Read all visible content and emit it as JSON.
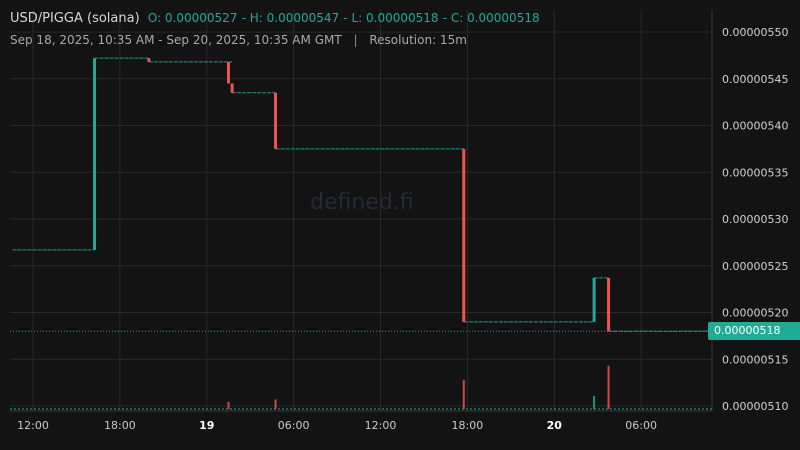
{
  "legend": {
    "pair": "USD/PIGGA (solana)",
    "open": "O: 0.00000527",
    "high": "H: 0.00000547",
    "low": "L: 0.00000518",
    "close": "C: 0.00000518",
    "range": "Sep 18, 2025, 10:35 AM - Sep 20, 2025, 10:35 AM GMT",
    "separator": "|",
    "resolution": "Resolution: 15m"
  },
  "watermark": "defined.fi",
  "last_price_label": "0.00000518",
  "colors": {
    "up": "#26a69a",
    "down": "#ef5350",
    "badge": "#22ab94",
    "background": "#131313",
    "grid": "#2a2a2a"
  },
  "chart_data": {
    "type": "candlestick",
    "title": "USD/PIGGA (solana)",
    "resolution": "15m",
    "xlabel": "",
    "ylabel": "",
    "ylim": [
      5.09e-06,
      5.53e-06
    ],
    "x_tick_labels": [
      {
        "label": "12:00",
        "t": "2025-09-18 12:00"
      },
      {
        "label": "18:00",
        "t": "2025-09-18 18:00"
      },
      {
        "label": "19",
        "t": "2025-09-19 00:00",
        "bold": true
      },
      {
        "label": "06:00",
        "t": "2025-09-19 06:00"
      },
      {
        "label": "12:00",
        "t": "2025-09-19 12:00"
      },
      {
        "label": "18:00",
        "t": "2025-09-19 18:00"
      },
      {
        "label": "20",
        "t": "2025-09-20 00:00",
        "bold": true
      },
      {
        "label": "06:00",
        "t": "2025-09-20 06:00"
      }
    ],
    "y_tick_labels": [
      "0.00000550",
      "0.00000545",
      "0.00000540",
      "0.00000535",
      "0.00000530",
      "0.00000525",
      "0.00000520",
      "0.00000515",
      "0.00000510"
    ],
    "y_ticks": [
      5.5e-06,
      5.45e-06,
      5.4e-06,
      5.35e-06,
      5.3e-06,
      5.25e-06,
      5.2e-06,
      5.15e-06,
      5.1e-06
    ],
    "grid": true,
    "last_price": 5.18e-06,
    "segments": [
      {
        "start": "2025-09-18 10:35",
        "end": "2025-09-18 16:15",
        "price": 5.267e-06
      },
      {
        "start": "2025-09-18 16:15",
        "end": "2025-09-18 20:00",
        "price": 5.472e-06
      },
      {
        "start": "2025-09-18 20:00",
        "end": "2025-09-19 01:45",
        "price": 5.468e-06
      },
      {
        "start": "2025-09-19 01:45",
        "end": "2025-09-19 04:45",
        "price": 5.435e-06
      },
      {
        "start": "2025-09-19 04:45",
        "end": "2025-09-19 17:45",
        "price": 5.375e-06
      },
      {
        "start": "2025-09-19 17:45",
        "end": "2025-09-20 02:45",
        "price": 5.19e-06
      },
      {
        "start": "2025-09-20 02:45",
        "end": "2025-09-20 03:45",
        "price": 5.237e-06
      },
      {
        "start": "2025-09-20 03:45",
        "end": "2025-09-20 10:35",
        "price": 5.18e-06
      }
    ],
    "candles": [
      {
        "t": "2025-09-18 16:15",
        "open": 5.267e-06,
        "close": 5.472e-06,
        "high": 5.472e-06,
        "low": 5.267e-06
      },
      {
        "t": "2025-09-18 20:00",
        "open": 5.472e-06,
        "close": 5.468e-06,
        "high": 5.472e-06,
        "low": 5.468e-06
      },
      {
        "t": "2025-09-19 01:30",
        "open": 5.468e-06,
        "close": 5.445e-06,
        "high": 5.468e-06,
        "low": 5.445e-06
      },
      {
        "t": "2025-09-19 01:45",
        "open": 5.445e-06,
        "close": 5.435e-06,
        "high": 5.445e-06,
        "low": 5.435e-06
      },
      {
        "t": "2025-09-19 04:45",
        "open": 5.435e-06,
        "close": 5.375e-06,
        "high": 5.435e-06,
        "low": 5.375e-06
      },
      {
        "t": "2025-09-19 17:45",
        "open": 5.375e-06,
        "close": 5.19e-06,
        "high": 5.375e-06,
        "low": 5.19e-06
      },
      {
        "t": "2025-09-20 02:45",
        "open": 5.19e-06,
        "close": 5.237e-06,
        "high": 5.237e-06,
        "low": 5.19e-06
      },
      {
        "t": "2025-09-20 03:45",
        "open": 5.237e-06,
        "close": 5.18e-06,
        "high": 5.237e-06,
        "low": 5.18e-06
      }
    ],
    "volume_spikes": [
      {
        "t": "2025-09-19 01:30",
        "direction": "down",
        "relative": 0.12
      },
      {
        "t": "2025-09-19 04:45",
        "direction": "down",
        "relative": 0.16
      },
      {
        "t": "2025-09-19 17:45",
        "direction": "down",
        "relative": 0.48
      },
      {
        "t": "2025-09-20 02:45",
        "direction": "up",
        "relative": 0.22
      },
      {
        "t": "2025-09-20 03:45",
        "direction": "down",
        "relative": 0.72
      }
    ]
  }
}
